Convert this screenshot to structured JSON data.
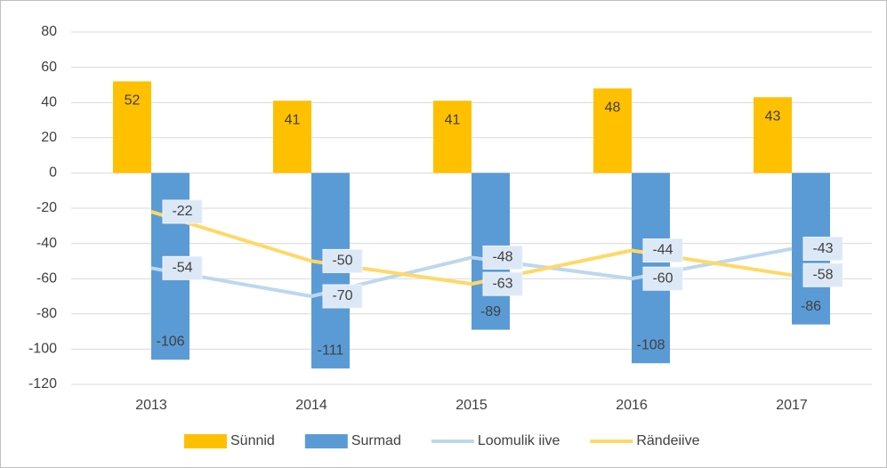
{
  "chart_data": {
    "type": "bar_line",
    "categories": [
      "2013",
      "2014",
      "2015",
      "2016",
      "2017"
    ],
    "series": [
      {
        "name": "Sünnid",
        "type": "bar",
        "color": "#ffc000",
        "values": [
          52,
          41,
          41,
          48,
          43
        ]
      },
      {
        "name": "Surmad",
        "type": "bar",
        "color": "#5b9bd5",
        "values": [
          -106,
          -111,
          -89,
          -108,
          -86
        ]
      },
      {
        "name": "Loomulik iive",
        "type": "line",
        "color": "#bdd7ee",
        "values": [
          -54,
          -70,
          -48,
          -60,
          -43
        ]
      },
      {
        "name": "Rändeiive",
        "type": "line",
        "color": "#ffd966",
        "values": [
          -22,
          -50,
          -63,
          -44,
          -58
        ]
      }
    ],
    "ylim": [
      -120,
      80
    ],
    "yticks": [
      -120,
      -100,
      -80,
      -60,
      -40,
      -20,
      0,
      20,
      40,
      60,
      80
    ],
    "grid": true,
    "legend": "bottom"
  }
}
